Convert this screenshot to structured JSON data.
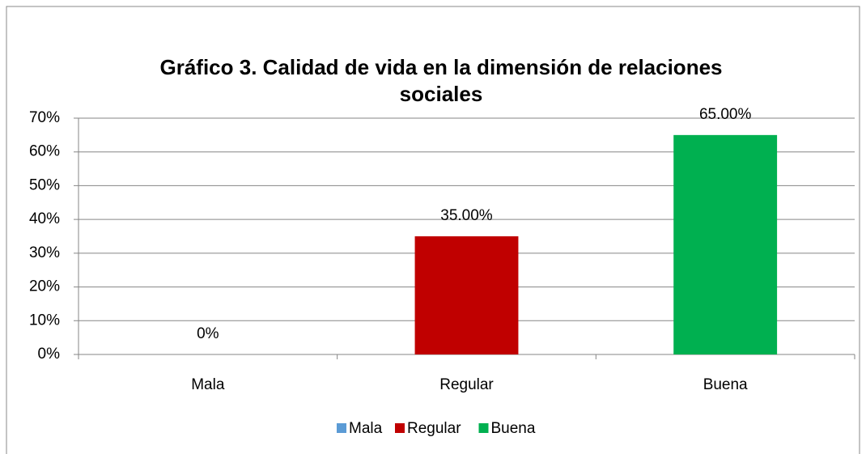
{
  "chart_data": {
    "type": "bar",
    "title": "Gráfico 3. Calidad de vida en la dimensión de relaciones",
    "subtitle": "sociales",
    "categories": [
      "Mala",
      "Regular",
      "Buena"
    ],
    "values": [
      0,
      35,
      65
    ],
    "value_labels": [
      "0%",
      "35.00%",
      "65.00%"
    ],
    "colors": [
      "#5b9bd5",
      "#c00000",
      "#00b050"
    ],
    "ylim": [
      0,
      70
    ],
    "yticks": [
      {
        "value": 0,
        "label": "0%"
      },
      {
        "value": 10,
        "label": "10%"
      },
      {
        "value": 20,
        "label": "20%"
      },
      {
        "value": 30,
        "label": "30%"
      },
      {
        "value": 40,
        "label": "40%"
      },
      {
        "value": 50,
        "label": "50%"
      },
      {
        "value": 60,
        "label": "60%"
      },
      {
        "value": 70,
        "label": "70%"
      }
    ],
    "grid": true,
    "legend": "bottom"
  }
}
